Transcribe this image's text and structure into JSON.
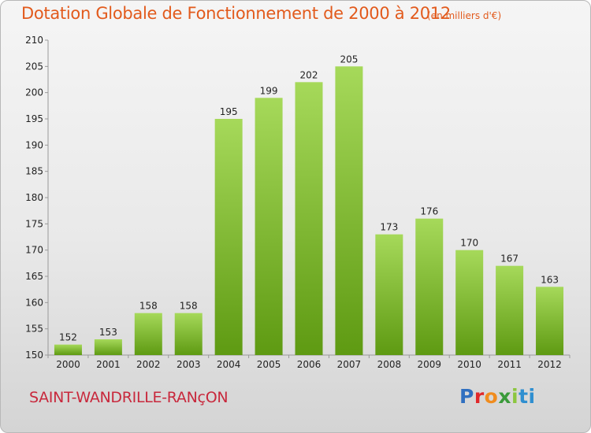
{
  "header": {
    "title": "Dotation Globale de Fonctionnement de 2000 à 2012",
    "subtitle": "(en milliers d'€)"
  },
  "footer": {
    "city": "SAINT-WANDRILLE-RANçON",
    "logo_letters": [
      "P",
      "r",
      "o",
      "x",
      "i",
      "t",
      "i"
    ]
  },
  "colors": {
    "title": "#e25a1c",
    "city": "#c8283c",
    "bar_top": "#a6d95a",
    "bar_bottom": "#5e9a12"
  },
  "chart_data": {
    "type": "bar",
    "title": "Dotation Globale de Fonctionnement de 2000 à 2012",
    "categories": [
      "2000",
      "2001",
      "2002",
      "2003",
      "2004",
      "2005",
      "2006",
      "2007",
      "2008",
      "2009",
      "2010",
      "2011",
      "2012"
    ],
    "values": [
      152,
      153,
      158,
      158,
      195,
      199,
      202,
      205,
      173,
      176,
      170,
      167,
      163
    ],
    "ylim": [
      150,
      210
    ],
    "yticks": [
      150,
      155,
      160,
      165,
      170,
      175,
      180,
      185,
      190,
      195,
      200,
      205,
      210
    ],
    "grid": false,
    "legend": "none"
  }
}
